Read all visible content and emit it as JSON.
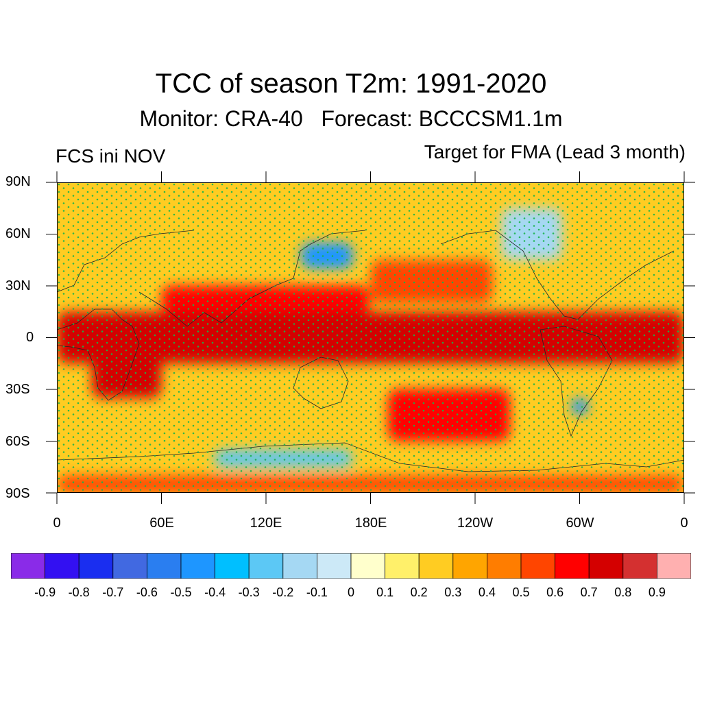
{
  "title": "TCC of season T2m: 1991-2020",
  "subtitle": "Monitor: CRA-40   Forecast: BCCCSM1.1m",
  "left_label": "FCS ini NOV",
  "right_label": "Target for FMA (Lead 3 month)",
  "lat_labels": [
    "90N",
    "60N",
    "30N",
    "0",
    "30S",
    "60S",
    "90S"
  ],
  "lon_labels": [
    "0",
    "60E",
    "120E",
    "180E",
    "120W",
    "60W",
    "0"
  ],
  "colorbar": {
    "labels": [
      "-0.9",
      "-0.8",
      "-0.7",
      "-0.6",
      "-0.5",
      "-0.4",
      "-0.3",
      "-0.2",
      "-0.1",
      "0",
      "0.1",
      "0.2",
      "0.3",
      "0.4",
      "0.5",
      "0.6",
      "0.7",
      "0.8",
      "0.9"
    ],
    "colors": [
      "#8a2be8",
      "#3310f2",
      "#1a2ef0",
      "#4169e1",
      "#2a7ef0",
      "#1e96ff",
      "#00bfff",
      "#5cc8f5",
      "#a5d8f3",
      "#cce9f7",
      "#ffffcc",
      "#fff06a",
      "#ffcc22",
      "#ffa500",
      "#ff7d00",
      "#ff4500",
      "#ff0000",
      "#d40000",
      "#d43030",
      "#ffb0b0"
    ]
  },
  "map_data": {
    "variable": "Temporal correlation coefficient (TCC)",
    "stippling": "significant",
    "regions": [
      {
        "lon": [
          0,
          360
        ],
        "lat": [
          -15,
          15
        ],
        "value": 0.75
      },
      {
        "lon": [
          60,
          180
        ],
        "lat": [
          15,
          30
        ],
        "value": 0.6
      },
      {
        "lon": [
          180,
          250
        ],
        "lat": [
          20,
          45
        ],
        "value": 0.55
      },
      {
        "lon": [
          20,
          60
        ],
        "lat": [
          -35,
          5
        ],
        "value": 0.7
      },
      {
        "lon": [
          140,
          170
        ],
        "lat": [
          40,
          55
        ],
        "value": -0.5
      },
      {
        "lon": [
          255,
          290
        ],
        "lat": [
          45,
          75
        ],
        "value": -0.2
      },
      {
        "lon": [
          90,
          170
        ],
        "lat": [
          -75,
          -65
        ],
        "value": -0.3
      },
      {
        "lon": [
          295,
          305
        ],
        "lat": [
          -45,
          -35
        ],
        "value": -0.5
      },
      {
        "lon": [
          190,
          260
        ],
        "lat": [
          -60,
          -30
        ],
        "value": 0.6
      },
      {
        "lon": [
          0,
          360
        ],
        "lat": [
          -90,
          -80
        ],
        "value": 0.5
      }
    ]
  }
}
